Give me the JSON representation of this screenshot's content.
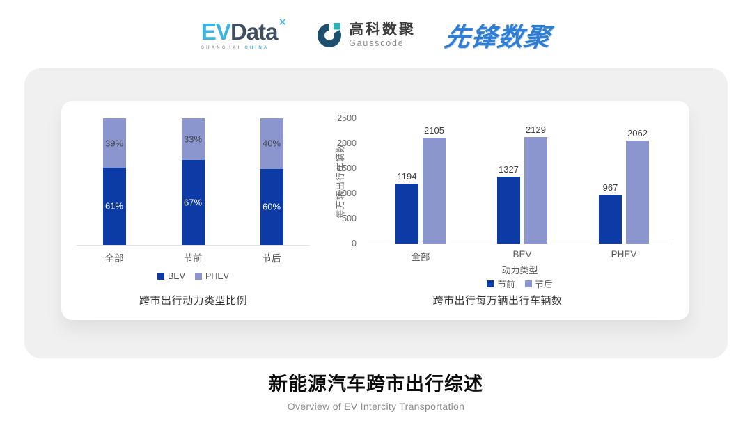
{
  "header": {
    "evdata": {
      "ev": "EV",
      "data": "Data",
      "mark": "✕",
      "sub_left": "SHANGHAI",
      "sub_right": "CHINA"
    },
    "gausscode": {
      "name_cn": "高科数聚",
      "name_en": "Gausscode"
    },
    "pioneer": {
      "name": "先锋数聚"
    }
  },
  "colors": {
    "primary_dark_blue": "#0d3ba5",
    "secondary_light_blue": "#8b96ce",
    "axis_text": "#595959",
    "card_gray": "#f0f0f1"
  },
  "chart_data": [
    {
      "type": "bar",
      "variant": "stacked-100",
      "title": "跨市出行动力类型比例",
      "categories": [
        "全部",
        "节前",
        "节后"
      ],
      "series": [
        {
          "name": "BEV",
          "color": "#0d3ba5",
          "label_color": "#ffffff",
          "values": [
            61,
            67,
            60
          ],
          "labels": [
            "61%",
            "67%",
            "60%"
          ]
        },
        {
          "name": "PHEV",
          "color": "#8b96ce",
          "label_color": "#474750",
          "values": [
            39,
            33,
            40
          ],
          "labels": [
            "39%",
            "33%",
            "40%"
          ]
        }
      ],
      "ylim": [
        0,
        100
      ],
      "grid": false,
      "legend_position": "bottom"
    },
    {
      "type": "bar",
      "variant": "grouped",
      "title": "跨市出行每万辆出行车辆数",
      "categories": [
        "全部",
        "BEV",
        "PHEV"
      ],
      "xlabel": "动力类型",
      "ylabel": "每万辆出行车辆数",
      "ylim": [
        0,
        2500
      ],
      "yticks": [
        0,
        500,
        1000,
        1500,
        2000,
        2500
      ],
      "series": [
        {
          "name": "节前",
          "color": "#0d3ba5",
          "values": [
            1194,
            1327,
            967
          ]
        },
        {
          "name": "节后",
          "color": "#8b96ce",
          "values": [
            2105,
            2129,
            2062
          ]
        }
      ],
      "grid": false,
      "legend_position": "bottom"
    }
  ],
  "footer": {
    "title": "新能源汽车跨市出行综述",
    "subtitle": "Overview of EV Intercity Transportation"
  }
}
